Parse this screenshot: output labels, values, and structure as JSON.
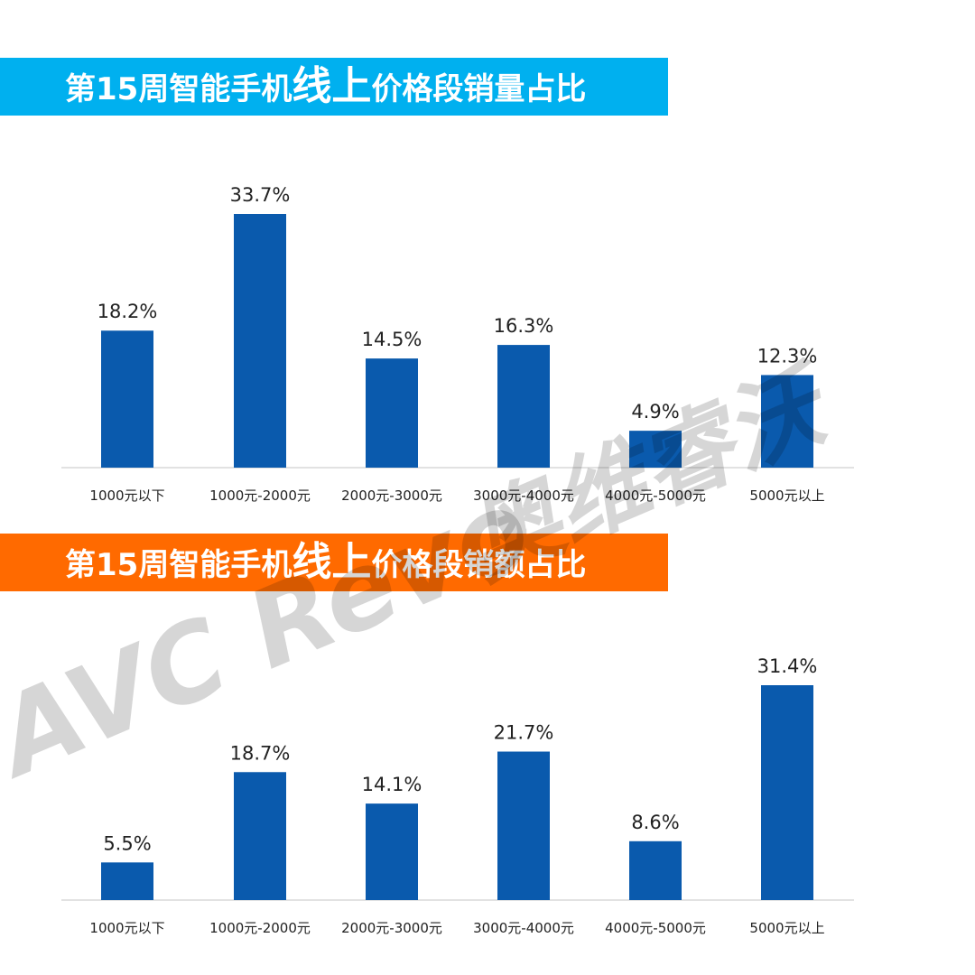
{
  "banners": {
    "top": {
      "pre": "第15周智能手机",
      "emph": "线上",
      "post": "价格段销量占比",
      "color": "#00b0ef"
    },
    "bottom": {
      "pre": "第15周智能手机",
      "emph": "线上",
      "post": "价格段销额占比",
      "color": "#ff6a00"
    }
  },
  "watermark": {
    "latin": "AVC Revo",
    "cjk": "奥维睿沃"
  },
  "chart_data": [
    {
      "type": "bar",
      "title": "第15周智能手机线上价格段销量占比",
      "categories": [
        "1000元以下",
        "1000元-2000元",
        "2000元-3000元",
        "3000元-4000元",
        "4000元-5000元",
        "5000元以上"
      ],
      "values": [
        18.2,
        33.7,
        14.5,
        16.3,
        4.9,
        12.3
      ],
      "data_labels": [
        "18.2%",
        "33.7%",
        "14.5%",
        "16.3%",
        "4.9%",
        "12.3%"
      ],
      "unit": "%",
      "ylim": [
        0,
        33.7
      ],
      "bar_color": "#0a5aad",
      "grid": false,
      "legend": "none"
    },
    {
      "type": "bar",
      "title": "第15周智能手机线上价格段销额占比",
      "categories": [
        "1000元以下",
        "1000元-2000元",
        "2000元-3000元",
        "3000元-4000元",
        "4000元-5000元",
        "5000元以上"
      ],
      "values": [
        5.5,
        18.7,
        14.1,
        21.7,
        8.6,
        31.4
      ],
      "data_labels": [
        "5.5%",
        "18.7%",
        "14.1%",
        "21.7%",
        "8.6%",
        "31.4%"
      ],
      "unit": "%",
      "ylim": [
        0,
        31.4
      ],
      "bar_color": "#0a5aad",
      "grid": false,
      "legend": "none"
    }
  ]
}
